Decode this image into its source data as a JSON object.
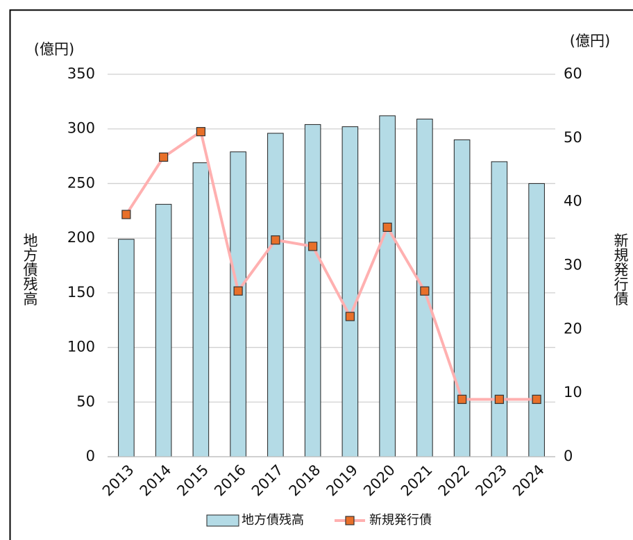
{
  "chart_data": {
    "type": "bar",
    "y_unit": "(億円)",
    "y2_unit": "(億円)",
    "ylabel": "地方債残高",
    "y2label": "新規発行債",
    "categories": [
      "2013",
      "2014",
      "2015",
      "2016",
      "2017",
      "2018",
      "2019",
      "2020",
      "2021",
      "2022",
      "2023",
      "2024"
    ],
    "series": [
      {
        "name": "地方債残高",
        "type": "bar",
        "color": "#b4dbe6",
        "values": [
          199,
          231,
          269,
          279,
          296,
          304,
          302,
          312,
          309,
          290,
          270,
          250
        ]
      },
      {
        "name": "新規発行債",
        "type": "line",
        "axis": "y2",
        "color": "#ffb0b0",
        "marker_color": "#e8702a",
        "values": [
          38,
          47,
          51,
          26,
          34,
          33,
          22,
          36,
          26,
          9,
          9,
          9
        ]
      }
    ],
    "ylim": [
      0,
      350
    ],
    "yticks": [
      0,
      50,
      100,
      150,
      200,
      250,
      300,
      350
    ],
    "y2lim": [
      0,
      60
    ],
    "y2ticks": [
      0,
      10,
      20,
      30,
      40,
      50,
      60
    ],
    "grid": true,
    "legend": "bottom"
  }
}
